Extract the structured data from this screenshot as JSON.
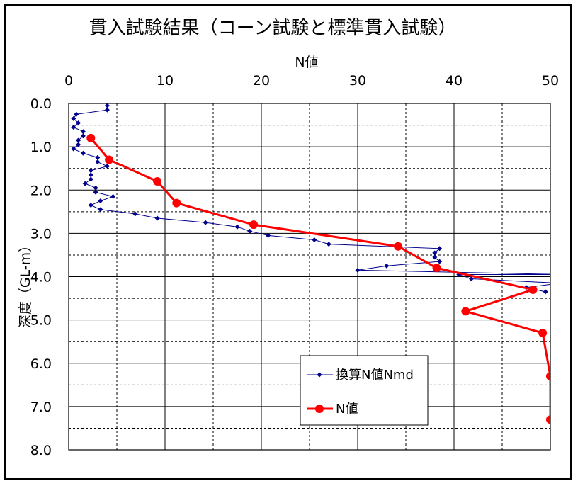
{
  "chart_data": {
    "type": "scatter",
    "title": "貫入試験結果（コーン試験と標準貫入試験）",
    "xlabel": "N値",
    "ylabel": "深度（GL-m）",
    "xlim": [
      0,
      50
    ],
    "ylim": [
      8.0,
      0.0
    ],
    "x_axis_position": "top",
    "y_axis_inverted": true,
    "grid": true,
    "x_ticks": [
      "0",
      "10",
      "20",
      "30",
      "40",
      "50"
    ],
    "y_ticks": [
      "0.0",
      "1.0",
      "2.0",
      "3.0",
      "4.0",
      "5.0",
      "6.0",
      "7.0",
      "8.0"
    ],
    "legend_position": "bottom-right",
    "series": [
      {
        "name": "換算N値Nmd",
        "color": "#00008B",
        "marker": "diamond",
        "points": [
          [
            4.0,
            0.05
          ],
          [
            4.0,
            0.15
          ],
          [
            0.8,
            0.25
          ],
          [
            0.5,
            0.35
          ],
          [
            1.0,
            0.45
          ],
          [
            0.5,
            0.55
          ],
          [
            1.5,
            0.65
          ],
          [
            1.5,
            0.75
          ],
          [
            1.0,
            0.85
          ],
          [
            1.0,
            0.95
          ],
          [
            0.5,
            1.05
          ],
          [
            1.5,
            1.15
          ],
          [
            3.0,
            1.25
          ],
          [
            3.0,
            1.35
          ],
          [
            4.0,
            1.45
          ],
          [
            2.3,
            1.55
          ],
          [
            2.3,
            1.65
          ],
          [
            2.3,
            1.75
          ],
          [
            1.7,
            1.85
          ],
          [
            2.8,
            1.95
          ],
          [
            2.8,
            2.05
          ],
          [
            4.6,
            2.15
          ],
          [
            3.3,
            2.25
          ],
          [
            2.3,
            2.35
          ],
          [
            3.3,
            2.45
          ],
          [
            6.9,
            2.55
          ],
          [
            9.2,
            2.65
          ],
          [
            14.2,
            2.75
          ],
          [
            17.5,
            2.85
          ],
          [
            18.8,
            2.95
          ],
          [
            20.7,
            3.05
          ],
          [
            25.5,
            3.15
          ],
          [
            27.0,
            3.25
          ],
          [
            38.5,
            3.35
          ],
          [
            38.0,
            3.45
          ],
          [
            38.0,
            3.55
          ],
          [
            38.5,
            3.65
          ],
          [
            33.0,
            3.75
          ],
          [
            30.0,
            3.85
          ],
          [
            51.0,
            3.95
          ],
          [
            40.5,
            3.95
          ],
          [
            41.8,
            4.05
          ],
          [
            51.0,
            4.15
          ],
          [
            47.5,
            4.25
          ],
          [
            49.5,
            4.35
          ]
        ]
      },
      {
        "name": "N値",
        "color": "#FF0000",
        "marker": "circle",
        "points": [
          [
            2.3,
            0.8
          ],
          [
            4.2,
            1.3
          ],
          [
            9.2,
            1.8
          ],
          [
            11.2,
            2.3
          ],
          [
            19.2,
            2.8
          ],
          [
            34.2,
            3.3
          ],
          [
            38.2,
            3.8
          ],
          [
            48.2,
            4.3
          ],
          [
            41.2,
            4.8
          ],
          [
            49.2,
            5.3
          ],
          [
            50.0,
            6.3
          ],
          [
            50.0,
            7.3
          ]
        ]
      }
    ]
  }
}
